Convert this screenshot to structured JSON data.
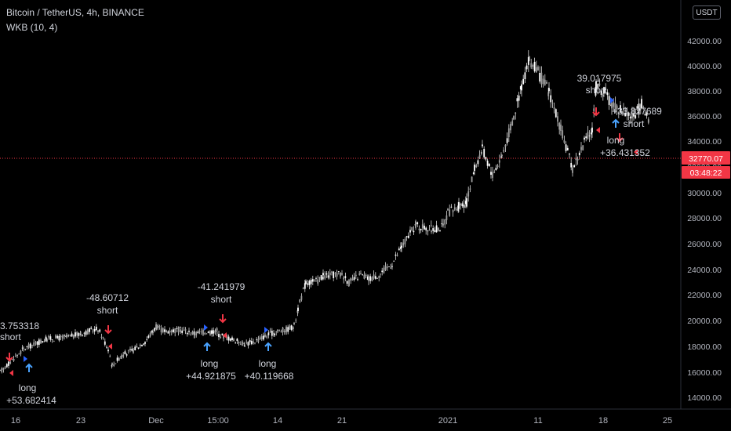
{
  "header": {
    "title": "Bitcoin / TetherUS, 4h, BINANCE",
    "indicator": "WKB (10, 4)",
    "currency_button": "USDT"
  },
  "price_label": {
    "value": "32770.07",
    "countdown": "03:48:22"
  },
  "colors": {
    "background": "#000000",
    "candle": "#d9d9d9",
    "long": "#2962ff",
    "short": "#f23645",
    "price_line": "#f23645",
    "text": "#d1d4dc",
    "axis_text": "#b2b5be"
  },
  "chart_data": {
    "type": "candlestick",
    "title": "Bitcoin / TetherUS, 4h, BINANCE",
    "xlabel": "",
    "ylabel": "",
    "ylim": [
      13200,
      43200
    ],
    "x_ticks": [
      "16",
      "23",
      "Dec",
      "15:00",
      "14",
      "21",
      "2021",
      "11",
      "18",
      "25"
    ],
    "y_ticks": [
      "14000.00",
      "16000.00",
      "18000.00",
      "20000.00",
      "22000.00",
      "24000.00",
      "26000.00",
      "28000.00",
      "30000.00",
      "32000.00",
      "34000.00",
      "36000.00",
      "38000.00",
      "40000.00",
      "42000.00"
    ],
    "grid": false,
    "price_path": [
      [
        "16",
        16000
      ],
      [
        "18",
        17800
      ],
      [
        "20",
        18600
      ],
      [
        "22",
        18700
      ],
      [
        "23",
        19000
      ],
      [
        "24",
        19400
      ],
      [
        "25",
        17800
      ],
      [
        "25.5",
        16500
      ],
      [
        "26",
        17300
      ],
      [
        "27",
        17700
      ],
      [
        "28",
        18400
      ],
      [
        "29",
        19200
      ],
      [
        "30",
        19600
      ],
      [
        "Dec",
        19500
      ],
      [
        "2 Dec",
        19200
      ],
      [
        "3 Dec",
        19300
      ],
      [
        "4 Dec",
        19000
      ],
      [
        "15:00",
        19300
      ],
      [
        "6 Dec",
        19200
      ],
      [
        "7 Dec",
        18800
      ],
      [
        "8 Dec",
        18500
      ],
      [
        "9 Dec",
        18200
      ],
      [
        "10 Dec",
        18400
      ],
      [
        "11 Dec",
        18800
      ],
      [
        "12 Dec",
        19100
      ],
      [
        "13 Dec",
        19200
      ],
      [
        "14",
        19300
      ],
      [
        "15 Dec",
        19600
      ],
      [
        "16 Dec",
        21000
      ],
      [
        "17 Dec",
        23000
      ],
      [
        "18 Dec",
        23100
      ],
      [
        "19 Dec",
        23500
      ],
      [
        "20 Dec",
        23700
      ],
      [
        "21",
        23000
      ],
      [
        "22 Dec",
        23600
      ],
      [
        "23 Dec",
        23300
      ],
      [
        "24 Dec",
        23700
      ],
      [
        "25 Dec",
        24500
      ],
      [
        "26 Dec",
        25800
      ],
      [
        "27 Dec",
        27500
      ],
      [
        "28 Dec",
        27200
      ],
      [
        "29 Dec",
        27400
      ],
      [
        "30 Dec",
        28500
      ],
      [
        "31 Dec",
        29000
      ],
      [
        "2021",
        29300
      ],
      [
        "2 Jan",
        32000
      ],
      [
        "3 Jan",
        33500
      ],
      [
        "4 Jan",
        31500
      ],
      [
        "5 Jan",
        33000
      ],
      [
        "6 Jan",
        36000
      ],
      [
        "7 Jan",
        38500
      ],
      [
        "8 Jan",
        40500
      ],
      [
        "9 Jan",
        39500
      ],
      [
        "10 Jan",
        38000
      ],
      [
        "10.5 Jan",
        35000
      ],
      [
        "11",
        32000
      ],
      [
        "12 Jan",
        34000
      ],
      [
        "13 Jan",
        35000
      ],
      [
        "14 Jan",
        38500
      ],
      [
        "15 Jan",
        38000
      ],
      [
        "16 Jan",
        37000
      ],
      [
        "17",
        36500
      ],
      [
        "18",
        36000
      ],
      [
        "19 Jan",
        37000
      ],
      [
        "20 Jan",
        35500
      ],
      [
        "21 Jan",
        33000
      ],
      [
        "22 Jan",
        31000
      ],
      [
        "23 Jan",
        33000
      ],
      [
        "24 Jan",
        32770
      ]
    ],
    "signals": [
      {
        "type": "short",
        "value": "3.753318",
        "label": "short"
      },
      {
        "type": "long",
        "label": "long",
        "value": "+53.682414"
      },
      {
        "type": "short",
        "value": "-48.60712",
        "label": "short"
      },
      {
        "type": "short",
        "value": "-41.241979",
        "label": "short"
      },
      {
        "type": "long",
        "label": "long",
        "value": "+44.921875"
      },
      {
        "type": "long",
        "label": "long",
        "value": "+40.119668"
      },
      {
        "type": "short",
        "value": "39.017975",
        "label": "short"
      },
      {
        "type": "short",
        "value": "+33.827689",
        "label": "short"
      },
      {
        "type": "long",
        "label": "long",
        "value": "+36.431352"
      }
    ],
    "last_price": 32770.07
  }
}
